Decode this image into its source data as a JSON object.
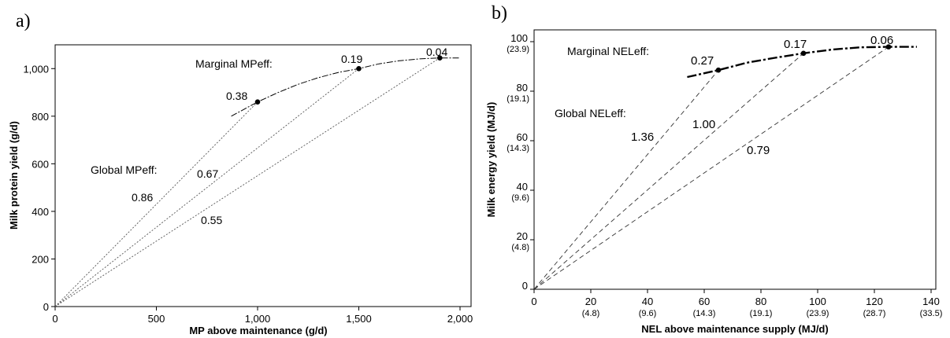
{
  "panels": {
    "a": {
      "letter": "a)"
    },
    "b": {
      "letter": "b)"
    }
  },
  "chart_data": [
    {
      "type": "line",
      "title": "",
      "xlabel": "MP above maintenance (g/d)",
      "ylabel": "Milk protein yield (g/d)",
      "xlim": [
        0,
        2000
      ],
      "ylim": [
        0,
        1100
      ],
      "x_ticks": [
        "0",
        "500",
        "1,000",
        "1,500",
        "2,000"
      ],
      "x_tick_values": [
        0,
        500,
        1000,
        1500,
        2000
      ],
      "y_ticks": [
        "0",
        "200",
        "400",
        "600",
        "800",
        "1,000"
      ],
      "y_tick_values": [
        0,
        200,
        400,
        600,
        800,
        1000
      ],
      "grid": false,
      "response_curve": {
        "x": [
          870,
          1000,
          1100,
          1200,
          1300,
          1400,
          1500,
          1600,
          1700,
          1800,
          1900,
          2000
        ],
        "y": [
          800,
          860,
          899,
          934,
          962,
          984,
          1000,
          1020,
          1033,
          1041,
          1045,
          1045
        ]
      },
      "points": [
        {
          "x": 1000,
          "y": 860
        },
        {
          "x": 1500,
          "y": 1000
        },
        {
          "x": 1900,
          "y": 1045
        }
      ],
      "marginal_title": "Marginal MPeff:",
      "marginal_values": [
        "0.38",
        "0.19",
        "0.04"
      ],
      "global_title": "Global MPeff:",
      "global_values": [
        "0.86",
        "0.67",
        "0.55"
      ]
    },
    {
      "type": "line",
      "title": "",
      "xlabel": "NEL above maintenance supply (MJ/d)",
      "ylabel": "Milk energy yield (MJ/d)",
      "xlim": [
        0,
        140
      ],
      "ylim": [
        0,
        100
      ],
      "x_ticks": [
        "0",
        "20",
        "40",
        "60",
        "80",
        "100",
        "120",
        "140"
      ],
      "x_tick_values": [
        0,
        20,
        40,
        60,
        80,
        100,
        120,
        140
      ],
      "x_tick_sublabels": [
        "",
        "(4.8)",
        "(9.6)",
        "(14.3)",
        "(19.1)",
        "(23.9)",
        "(28.7)",
        "(33.5)"
      ],
      "y_ticks": [
        "0",
        "20",
        "40",
        "60",
        "80",
        "100"
      ],
      "y_tick_values": [
        0,
        20,
        40,
        60,
        80,
        100
      ],
      "y_tick_sublabels": [
        "",
        "(4.8)",
        "(9.6)",
        "(14.3)",
        "(19.1)",
        "(23.9)"
      ],
      "grid": false,
      "response_curve": {
        "x": [
          54,
          65,
          75,
          85,
          95,
          105,
          115,
          125,
          135
        ],
        "y": [
          85.7,
          88.5,
          91.5,
          93.5,
          95.3,
          96.8,
          97.7,
          97.9,
          97.9
        ]
      },
      "points": [
        {
          "x": 65,
          "y": 88.5
        },
        {
          "x": 95,
          "y": 95.3
        },
        {
          "x": 125,
          "y": 97.9
        }
      ],
      "marginal_title": "Marginal NELeff:",
      "marginal_values": [
        "0.27",
        "0.17",
        "0.06"
      ],
      "global_title": "Global NELeff:",
      "global_values": [
        "1.36",
        "1.00",
        "0.79"
      ]
    }
  ]
}
